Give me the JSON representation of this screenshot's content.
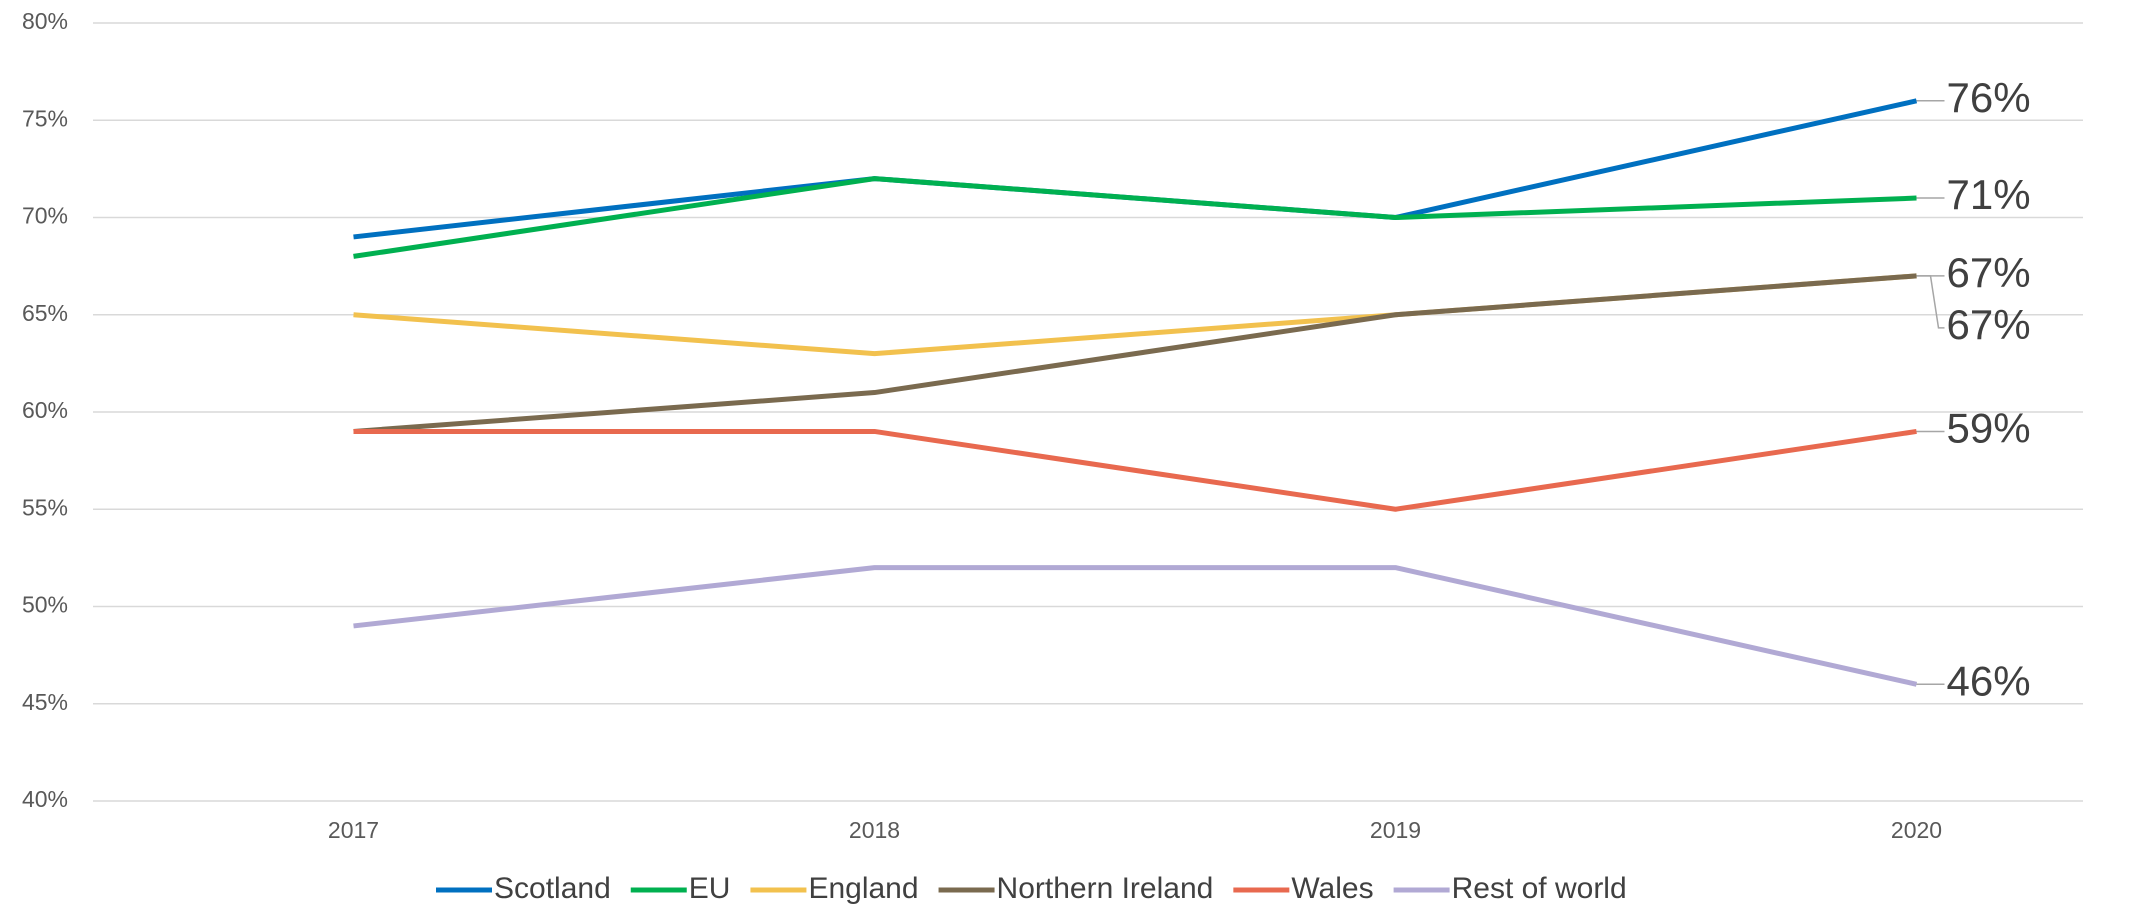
{
  "chart_data": {
    "type": "line",
    "categories": [
      "2017",
      "2018",
      "2019",
      "2020"
    ],
    "ylim": [
      40,
      80
    ],
    "yticks": [
      {
        "value": 40,
        "label": "40%"
      },
      {
        "value": 45,
        "label": "45%"
      },
      {
        "value": 50,
        "label": "50%"
      },
      {
        "value": 55,
        "label": "55%"
      },
      {
        "value": 60,
        "label": "60%"
      },
      {
        "value": 65,
        "label": "65%"
      },
      {
        "value": 70,
        "label": "70%"
      },
      {
        "value": 75,
        "label": "75%"
      },
      {
        "value": 80,
        "label": "80%"
      }
    ],
    "grid": true,
    "legend": "bottom",
    "series": [
      {
        "name": "Scotland",
        "color": "#0070c0",
        "values": [
          69,
          72,
          70,
          76
        ],
        "value_labels": [
          null,
          null,
          null,
          "76%"
        ]
      },
      {
        "name": "EU",
        "color": "#00b050",
        "values": [
          68,
          72,
          70,
          71
        ],
        "value_labels": [
          null,
          null,
          null,
          "71%"
        ]
      },
      {
        "name": "England",
        "color": "#f2c14e",
        "values": [
          65,
          63,
          65,
          67
        ],
        "value_labels": [
          null,
          null,
          null,
          "67%"
        ]
      },
      {
        "name": "Northern Ireland",
        "color": "#7a6a4f",
        "values": [
          59,
          61,
          65,
          67
        ],
        "value_labels": [
          null,
          null,
          null,
          "67%"
        ]
      },
      {
        "name": "Wales",
        "color": "#e8694f",
        "values": [
          59,
          59,
          55,
          59
        ],
        "value_labels": [
          null,
          null,
          null,
          "59%"
        ]
      },
      {
        "name": "Rest of world",
        "color": "#b1a9d4",
        "values": [
          49,
          52,
          52,
          46
        ],
        "value_labels": [
          null,
          null,
          null,
          "46%"
        ]
      }
    ]
  }
}
